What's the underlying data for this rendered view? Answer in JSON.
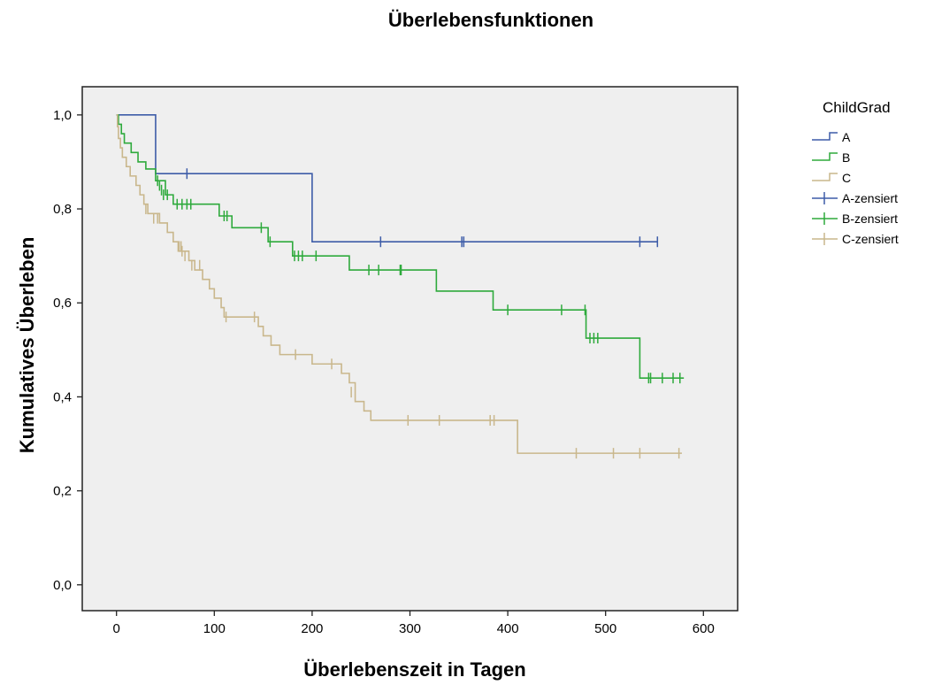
{
  "chart_data": {
    "type": "line",
    "title": "Überlebensfunktionen",
    "xlabel": "Überlebenszeit in Tagen",
    "ylabel": "Kumulatives Überleben",
    "xlim": [
      -35,
      635
    ],
    "ylim": [
      -0.055,
      1.06
    ],
    "x_ticks": [
      0,
      100,
      200,
      300,
      400,
      500,
      600
    ],
    "y_ticks": [
      0.0,
      0.2,
      0.4,
      0.6,
      0.8,
      1.0
    ],
    "x_tick_labels": [
      "0",
      "100",
      "200",
      "300",
      "400",
      "500",
      "600"
    ],
    "y_tick_labels": [
      "0,0",
      "0,2",
      "0,4",
      "0,6",
      "0,8",
      "1,0"
    ],
    "background": "#efefef",
    "legend": {
      "title": "ChildGrad",
      "position": "right",
      "entries": [
        "A",
        "B",
        "C",
        "A-zensiert",
        "B-zensiert",
        "C-zensiert"
      ]
    },
    "series": [
      {
        "name": "A",
        "color": "#3d5ca8",
        "steps": [
          [
            0,
            1.0
          ],
          [
            40,
            0.875
          ],
          [
            200,
            0.73
          ],
          [
            553,
            0.73
          ]
        ],
        "censored": [
          [
            72,
            0.875
          ],
          [
            270,
            0.73
          ],
          [
            353,
            0.73
          ],
          [
            355,
            0.73
          ],
          [
            535,
            0.73
          ],
          [
            553,
            0.73
          ]
        ]
      },
      {
        "name": "B",
        "color": "#2eaa3c",
        "steps": [
          [
            0,
            1.0
          ],
          [
            2,
            0.98
          ],
          [
            5,
            0.96
          ],
          [
            8,
            0.94
          ],
          [
            15,
            0.92
          ],
          [
            22,
            0.9
          ],
          [
            30,
            0.885
          ],
          [
            40,
            0.86
          ],
          [
            50,
            0.83
          ],
          [
            58,
            0.81
          ],
          [
            105,
            0.785
          ],
          [
            118,
            0.76
          ],
          [
            155,
            0.73
          ],
          [
            180,
            0.7
          ],
          [
            238,
            0.67
          ],
          [
            327,
            0.625
          ],
          [
            385,
            0.585
          ],
          [
            480,
            0.525
          ],
          [
            535,
            0.44
          ],
          [
            580,
            0.44
          ]
        ],
        "censored": [
          [
            42,
            0.86
          ],
          [
            44,
            0.85
          ],
          [
            46,
            0.84
          ],
          [
            48,
            0.83
          ],
          [
            52,
            0.83
          ],
          [
            62,
            0.81
          ],
          [
            67,
            0.81
          ],
          [
            72,
            0.81
          ],
          [
            76,
            0.81
          ],
          [
            110,
            0.785
          ],
          [
            113,
            0.785
          ],
          [
            148,
            0.76
          ],
          [
            157,
            0.73
          ],
          [
            182,
            0.7
          ],
          [
            186,
            0.7
          ],
          [
            190,
            0.7
          ],
          [
            204,
            0.7
          ],
          [
            258,
            0.67
          ],
          [
            268,
            0.67
          ],
          [
            290,
            0.67
          ],
          [
            291,
            0.67
          ],
          [
            400,
            0.585
          ],
          [
            455,
            0.585
          ],
          [
            479,
            0.585
          ],
          [
            484,
            0.525
          ],
          [
            488,
            0.525
          ],
          [
            492,
            0.525
          ],
          [
            544,
            0.44
          ],
          [
            546,
            0.44
          ],
          [
            558,
            0.44
          ],
          [
            569,
            0.44
          ],
          [
            576,
            0.44
          ]
        ]
      },
      {
        "name": "C",
        "color": "#c9b78c",
        "steps": [
          [
            0,
            1.0
          ],
          [
            1,
            0.975
          ],
          [
            2,
            0.95
          ],
          [
            4,
            0.93
          ],
          [
            6,
            0.91
          ],
          [
            10,
            0.89
          ],
          [
            14,
            0.87
          ],
          [
            20,
            0.85
          ],
          [
            24,
            0.83
          ],
          [
            28,
            0.81
          ],
          [
            32,
            0.79
          ],
          [
            44,
            0.77
          ],
          [
            52,
            0.75
          ],
          [
            58,
            0.73
          ],
          [
            64,
            0.71
          ],
          [
            74,
            0.69
          ],
          [
            80,
            0.67
          ],
          [
            88,
            0.65
          ],
          [
            95,
            0.63
          ],
          [
            100,
            0.61
          ],
          [
            107,
            0.59
          ],
          [
            110,
            0.57
          ],
          [
            145,
            0.55
          ],
          [
            150,
            0.53
          ],
          [
            158,
            0.51
          ],
          [
            167,
            0.49
          ],
          [
            200,
            0.47
          ],
          [
            230,
            0.45
          ],
          [
            238,
            0.43
          ],
          [
            244,
            0.39
          ],
          [
            253,
            0.37
          ],
          [
            260,
            0.35
          ],
          [
            410,
            0.28
          ],
          [
            578,
            0.28
          ]
        ],
        "censored": [
          [
            30,
            0.8
          ],
          [
            38,
            0.78
          ],
          [
            42,
            0.78
          ],
          [
            63,
            0.72
          ],
          [
            66,
            0.72
          ],
          [
            67,
            0.71
          ],
          [
            70,
            0.7
          ],
          [
            77,
            0.68
          ],
          [
            85,
            0.68
          ],
          [
            112,
            0.57
          ],
          [
            141,
            0.57
          ],
          [
            183,
            0.49
          ],
          [
            220,
            0.47
          ],
          [
            240,
            0.41
          ],
          [
            298,
            0.35
          ],
          [
            330,
            0.35
          ],
          [
            382,
            0.35
          ],
          [
            386,
            0.35
          ],
          [
            470,
            0.28
          ],
          [
            508,
            0.28
          ],
          [
            535,
            0.28
          ],
          [
            575,
            0.28
          ]
        ]
      }
    ]
  }
}
